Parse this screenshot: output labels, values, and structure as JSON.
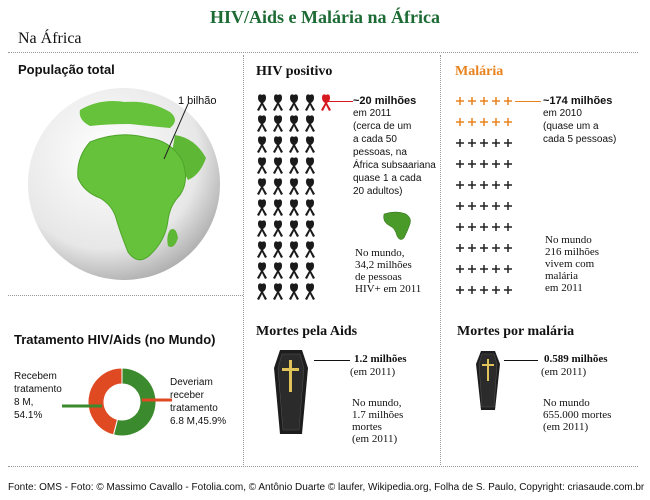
{
  "title": "HIV/Aids e Malária na África",
  "subtitle": "Na África",
  "population": {
    "heading": "População total",
    "callout": "1 bilhão"
  },
  "hiv": {
    "heading": "HIV positivo",
    "color": "#d71920",
    "stat_value": "~20 milhões",
    "stat_lines": [
      "em 2011",
      "(cerca de um",
      "a cada 50",
      "pessoas, na",
      "África subsaariana",
      "quase 1 a cada",
      "20 adultos)"
    ],
    "world_lines": [
      "No mundo,",
      "34,2 milhões",
      "de pessoas",
      "HIV+ em 2011"
    ],
    "icon": "ribbon-icon",
    "grid_rows": 10,
    "grid_cols": 4,
    "highlighted": 1
  },
  "malaria": {
    "heading": "Malária",
    "color": "#e8821e",
    "stat_value": "~174 milhões",
    "stat_lines": [
      "em 2010",
      "(quase um a",
      "cada 5 pessoas)"
    ],
    "world_lines": [
      "No mundo",
      "216 milhões",
      "vivem com",
      "malária",
      "em 2011"
    ],
    "icon": "cross-icon",
    "grid_rows": 10,
    "grid_cols": 5,
    "highlighted_rows": 2
  },
  "treatment": {
    "heading": "Tratamento HIV/Aids (no Mundo)",
    "left_label": [
      "Recebem",
      "tratamento",
      "8 M,",
      "54.1%"
    ],
    "right_label": [
      "Deveriam",
      "receber",
      "tratamento",
      "6.8 M,45.9%"
    ],
    "colors": {
      "receive": "#3c8a2e",
      "should": "#e04a22"
    }
  },
  "aids_deaths": {
    "heading": "Mortes pela Aids",
    "value": "1.2 milhões",
    "year": "(em 2011)",
    "world_lines": [
      "No mundo,",
      "1.7 milhões",
      "mortes",
      "(em 2011)"
    ],
    "icon": "coffin-icon"
  },
  "malaria_deaths": {
    "heading": "Mortes por malária",
    "value": "0.589 milhões",
    "year": "(em 2011)",
    "world_lines": [
      "No mundo",
      "655.000 mortes",
      "(em 2011)"
    ],
    "icon": "coffin-icon"
  },
  "chart_data": {
    "type": "pie",
    "title": "Tratamento HIV/Aids (no Mundo)",
    "categories": [
      "Recebem tratamento",
      "Deveriam receber tratamento"
    ],
    "values": [
      8,
      6.8
    ],
    "percent": [
      54.1,
      45.9
    ],
    "unit": "M",
    "colors": [
      "#3c8a2e",
      "#e04a22"
    ]
  },
  "source": "Fonte: OMS - Foto: © Massimo Cavallo - Fotolia.com, © Antônio Duarte © laufer, Wikipedia.org, Folha de S. Paulo, Copyright: criasaude.com.br"
}
